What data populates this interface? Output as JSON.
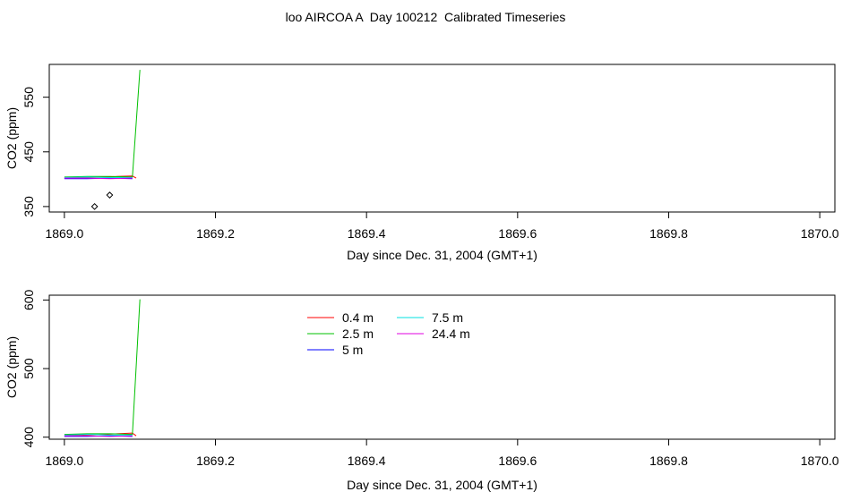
{
  "title": "loo AIRCOA A  Day 100212  Calibrated Timeseries",
  "colors": {
    "0.4 m": "#ff0000",
    "2.5 m": "#00c000",
    "5 m": "#0000ff",
    "7.5 m": "#00e0e0",
    "24.4 m": "#e000e0",
    "points": "#000000"
  },
  "chart_data": [
    {
      "type": "line",
      "xlabel": "Day since Dec. 31, 2004 (GMT+1)",
      "ylabel": "CO2 (ppm)",
      "xlim": [
        1868.98,
        1870.02
      ],
      "ylim": [
        340,
        610
      ],
      "xticks": [
        "1869.0",
        "1869.2",
        "1869.4",
        "1869.6",
        "1869.8",
        "1870.0"
      ],
      "yticks": [
        "350",
        "450",
        "550"
      ],
      "grid": false,
      "series": [
        {
          "name": "0.4 m",
          "x": [
            1869.0,
            1869.03,
            1869.055,
            1869.07,
            1869.09,
            1869.095
          ],
          "y": [
            402,
            403,
            404,
            405,
            406,
            402
          ]
        },
        {
          "name": "2.5 m",
          "x": [
            1869.0,
            1869.03,
            1869.06,
            1869.09,
            1869.1
          ],
          "y": [
            404,
            405,
            405,
            404,
            600
          ]
        },
        {
          "name": "5 m",
          "x": [
            1869.0,
            1869.03,
            1869.06,
            1869.09
          ],
          "y": [
            401,
            401,
            402,
            401
          ]
        },
        {
          "name": "7.5 m",
          "x": [
            1869.0,
            1869.03,
            1869.06,
            1869.09
          ],
          "y": [
            403,
            404,
            403,
            403
          ]
        },
        {
          "name": "24.4 m",
          "x": [
            1869.0,
            1869.03,
            1869.06,
            1869.09
          ],
          "y": [
            402,
            402,
            401,
            402
          ]
        }
      ],
      "points": {
        "x": [
          1869.04,
          1869.06
        ],
        "y": [
          350,
          371
        ]
      }
    },
    {
      "type": "line",
      "xlabel": "Day since Dec. 31, 2004 (GMT+1)",
      "ylabel": "CO2 (ppm)",
      "xlim": [
        1868.98,
        1870.02
      ],
      "ylim": [
        397,
        607
      ],
      "xticks": [
        "1869.0",
        "1869.2",
        "1869.4",
        "1869.6",
        "1869.8",
        "1870.0"
      ],
      "yticks": [
        "400",
        "500",
        "600"
      ],
      "grid": false,
      "legend": {
        "placement": "top-center",
        "entries": [
          "0.4 m",
          "2.5 m",
          "5 m",
          "7.5 m",
          "24.4 m"
        ]
      },
      "series": [
        {
          "name": "0.4 m",
          "x": [
            1869.0,
            1869.03,
            1869.055,
            1869.07,
            1869.09,
            1869.095
          ],
          "y": [
            402,
            403,
            404,
            405,
            406,
            402
          ]
        },
        {
          "name": "2.5 m",
          "x": [
            1869.0,
            1869.03,
            1869.06,
            1869.09,
            1869.1
          ],
          "y": [
            404,
            405,
            405,
            404,
            601
          ]
        },
        {
          "name": "5 m",
          "x": [
            1869.0,
            1869.03,
            1869.06,
            1869.09
          ],
          "y": [
            401,
            401,
            402,
            401
          ]
        },
        {
          "name": "7.5 m",
          "x": [
            1869.0,
            1869.03,
            1869.06,
            1869.09
          ],
          "y": [
            403,
            404,
            403,
            403
          ]
        },
        {
          "name": "24.4 m",
          "x": [
            1869.0,
            1869.03,
            1869.06,
            1869.09
          ],
          "y": [
            402,
            402,
            401,
            402
          ]
        }
      ]
    }
  ]
}
